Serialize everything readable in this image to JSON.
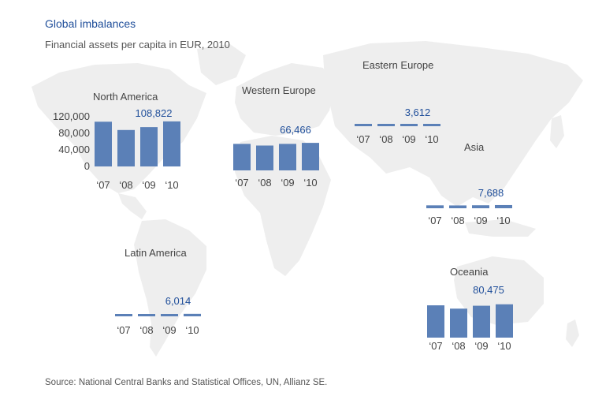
{
  "title": "Global imbalances",
  "subtitle": "Financial assets per capita in EUR, 2010",
  "source": "Source: National Central Banks and Statistical Offices, UN, Allianz SE.",
  "colors": {
    "bar": "#5b80b7",
    "map": "#eeeeee",
    "value": "#1f4e9a"
  },
  "chart_data": [
    {
      "type": "bar",
      "title": "North America",
      "categories": [
        "‘07",
        "‘08",
        "‘09",
        "‘10"
      ],
      "values": [
        108000,
        88000,
        95000,
        108822
      ],
      "value_label": "108,822",
      "ylim": [
        0,
        120000
      ],
      "yticks": [
        "120,000",
        "80,000",
        "40,000",
        "0"
      ]
    },
    {
      "type": "bar",
      "title": "Western Europe",
      "categories": [
        "‘07",
        "‘08",
        "‘09",
        "‘10"
      ],
      "values": [
        64000,
        60000,
        64000,
        66466
      ],
      "value_label": "66,466",
      "ylim": [
        0,
        120000
      ]
    },
    {
      "type": "bar",
      "title": "Eastern Europe",
      "categories": [
        "‘07",
        "‘08",
        "‘09",
        "‘10"
      ],
      "values": [
        3300,
        3000,
        3300,
        3612
      ],
      "value_label": "3,612",
      "ylim": [
        0,
        120000
      ]
    },
    {
      "type": "bar",
      "title": "Asia",
      "categories": [
        "‘07",
        "‘08",
        "‘09",
        "‘10"
      ],
      "values": [
        7000,
        6800,
        7200,
        7688
      ],
      "value_label": "7,688",
      "ylim": [
        0,
        120000
      ]
    },
    {
      "type": "bar",
      "title": "Latin America",
      "categories": [
        "‘07",
        "‘08",
        "‘09",
        "‘10"
      ],
      "values": [
        5200,
        5000,
        5400,
        6014
      ],
      "value_label": "6,014",
      "ylim": [
        0,
        120000
      ]
    },
    {
      "type": "bar",
      "title": "Oceania",
      "categories": [
        "‘07",
        "‘08",
        "‘09",
        "‘10"
      ],
      "values": [
        78000,
        70000,
        77000,
        80475
      ],
      "value_label": "80,475",
      "ylim": [
        0,
        120000
      ]
    }
  ]
}
